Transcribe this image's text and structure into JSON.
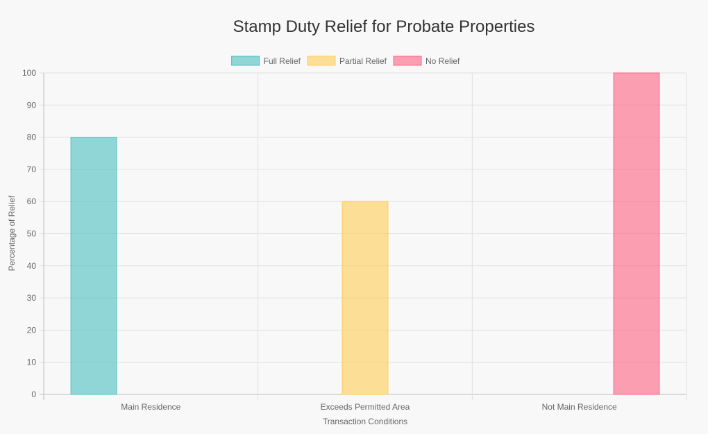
{
  "chart_data": {
    "type": "bar",
    "title": "Stamp Duty Relief for Probate Properties",
    "xlabel": "Transaction Conditions",
    "ylabel": "Percentage of Relief",
    "categories": [
      "Main Residence",
      "Exceeds Permitted Area",
      "Not Main Residence"
    ],
    "series": [
      {
        "name": "Full Relief",
        "values": [
          80,
          0,
          0
        ],
        "color": "#4bc0c0"
      },
      {
        "name": "Partial Relief",
        "values": [
          0,
          60,
          0
        ],
        "color": "#ffcd56"
      },
      {
        "name": "No Relief",
        "values": [
          0,
          0,
          100
        ],
        "color": "#ff6384"
      }
    ],
    "ylim": [
      0,
      100
    ],
    "yticks": [
      0,
      10,
      20,
      30,
      40,
      50,
      60,
      70,
      80,
      90,
      100
    ],
    "grid": true,
    "legend_position": "top-center"
  }
}
